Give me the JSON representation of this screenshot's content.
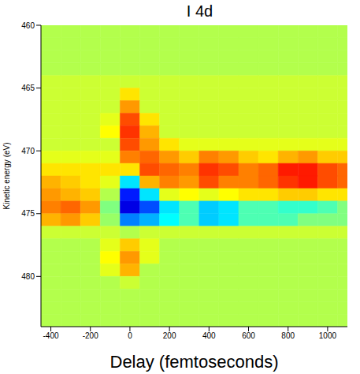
{
  "chart_data": {
    "type": "heatmap",
    "title": "I 4d",
    "x_label": "Delay (femtoseconds)",
    "y_label": "Kinetic energy (eV)",
    "xlim": [
      -450,
      1100
    ],
    "xticks": [
      -400,
      -200,
      0,
      200,
      400,
      600,
      800,
      1000
    ],
    "ylim": [
      460,
      484
    ],
    "yticks": [
      460,
      465,
      470,
      475,
      480
    ],
    "zlim": [
      -1,
      1
    ],
    "x_edges": [
      -450,
      -350,
      -250,
      -150,
      -50,
      50,
      150,
      250,
      350,
      450,
      550,
      650,
      750,
      850,
      950,
      1050,
      1150
    ],
    "y_edges": [
      460,
      461,
      462,
      463,
      464,
      465,
      466,
      467,
      468,
      469,
      470,
      471,
      472,
      473,
      474,
      475,
      476,
      477,
      478,
      479,
      480,
      481,
      482,
      483,
      484
    ],
    "z": [
      [
        0.1,
        0.1,
        0.1,
        0.1,
        0.1,
        0.1,
        0.1,
        0.1,
        0.1,
        0.1,
        0.1,
        0.1,
        0.1,
        0.1,
        0.1,
        0.1
      ],
      [
        0.1,
        0.1,
        0.1,
        0.1,
        0.1,
        0.1,
        0.1,
        0.1,
        0.1,
        0.1,
        0.1,
        0.1,
        0.1,
        0.1,
        0.1,
        0.1
      ],
      [
        0.1,
        0.1,
        0.1,
        0.1,
        0.1,
        0.1,
        0.1,
        0.1,
        0.1,
        0.1,
        0.1,
        0.1,
        0.1,
        0.1,
        0.1,
        0.1
      ],
      [
        0.1,
        0.1,
        0.1,
        0.1,
        0.1,
        0.1,
        0.1,
        0.1,
        0.1,
        0.1,
        0.1,
        0.1,
        0.1,
        0.1,
        0.1,
        0.1
      ],
      [
        0.15,
        0.15,
        0.15,
        0.15,
        0.15,
        0.15,
        0.15,
        0.15,
        0.15,
        0.15,
        0.15,
        0.15,
        0.15,
        0.15,
        0.15,
        0.15
      ],
      [
        0.15,
        0.15,
        0.15,
        0.15,
        0.3,
        0.15,
        0.15,
        0.15,
        0.15,
        0.15,
        0.15,
        0.15,
        0.15,
        0.15,
        0.15,
        0.15
      ],
      [
        0.15,
        0.15,
        0.15,
        0.15,
        0.45,
        0.15,
        0.15,
        0.15,
        0.15,
        0.15,
        0.15,
        0.15,
        0.15,
        0.15,
        0.15,
        0.15
      ],
      [
        0.15,
        0.15,
        0.15,
        0.2,
        0.6,
        0.3,
        0.15,
        0.15,
        0.15,
        0.15,
        0.15,
        0.15,
        0.15,
        0.15,
        0.15,
        0.15
      ],
      [
        0.15,
        0.15,
        0.15,
        0.25,
        0.65,
        0.4,
        0.15,
        0.15,
        0.15,
        0.15,
        0.15,
        0.15,
        0.15,
        0.15,
        0.15,
        0.15
      ],
      [
        0.15,
        0.15,
        0.15,
        0.15,
        0.6,
        0.45,
        0.3,
        0.2,
        0.2,
        0.2,
        0.2,
        0.2,
        0.2,
        0.2,
        0.2,
        0.2
      ],
      [
        0.2,
        0.2,
        0.2,
        0.2,
        0.5,
        0.55,
        0.45,
        0.35,
        0.5,
        0.45,
        0.35,
        0.3,
        0.4,
        0.45,
        0.35,
        0.35
      ],
      [
        0.3,
        0.3,
        0.3,
        0.3,
        0.3,
        0.6,
        0.55,
        0.5,
        0.65,
        0.6,
        0.5,
        0.55,
        0.7,
        0.7,
        0.6,
        0.55
      ],
      [
        0.4,
        0.35,
        0.3,
        0.2,
        -0.3,
        0.4,
        0.5,
        0.45,
        0.6,
        0.5,
        0.5,
        0.55,
        0.65,
        0.7,
        0.6,
        0.55
      ],
      [
        0.45,
        0.4,
        0.35,
        0.1,
        -0.7,
        -0.3,
        0.2,
        0.25,
        0.2,
        0.25,
        0.3,
        0.3,
        0.35,
        0.35,
        0.3,
        0.3
      ],
      [
        0.5,
        0.55,
        0.45,
        0.0,
        -0.8,
        -0.6,
        -0.3,
        -0.1,
        -0.35,
        -0.3,
        -0.1,
        -0.1,
        -0.15,
        -0.15,
        -0.1,
        0.0
      ],
      [
        0.4,
        0.45,
        0.35,
        0.05,
        -0.5,
        -0.4,
        -0.25,
        -0.1,
        -0.35,
        -0.3,
        -0.1,
        -0.1,
        -0.1,
        0.0,
        0.0,
        0.0
      ],
      [
        0.15,
        0.15,
        0.15,
        0.15,
        0.1,
        0.15,
        0.15,
        0.15,
        0.15,
        0.15,
        0.15,
        0.15,
        0.15,
        0.15,
        0.15,
        0.15
      ],
      [
        0.1,
        0.1,
        0.1,
        0.2,
        0.35,
        0.2,
        0.1,
        0.1,
        0.1,
        0.1,
        0.1,
        0.1,
        0.1,
        0.1,
        0.1,
        0.1
      ],
      [
        0.1,
        0.1,
        0.1,
        0.25,
        0.45,
        0.2,
        0.1,
        0.1,
        0.1,
        0.1,
        0.1,
        0.1,
        0.1,
        0.1,
        0.1,
        0.1
      ],
      [
        0.1,
        0.1,
        0.1,
        0.2,
        0.4,
        0.1,
        0.1,
        0.1,
        0.1,
        0.1,
        0.1,
        0.1,
        0.1,
        0.1,
        0.1,
        0.1
      ],
      [
        0.1,
        0.1,
        0.1,
        0.1,
        0.15,
        0.1,
        0.1,
        0.1,
        0.1,
        0.1,
        0.1,
        0.1,
        0.1,
        0.1,
        0.1,
        0.1
      ],
      [
        0.1,
        0.1,
        0.1,
        0.1,
        0.1,
        0.1,
        0.1,
        0.1,
        0.1,
        0.1,
        0.1,
        0.1,
        0.1,
        0.1,
        0.1,
        0.1
      ],
      [
        0.1,
        0.1,
        0.1,
        0.1,
        0.1,
        0.1,
        0.1,
        0.1,
        0.1,
        0.1,
        0.1,
        0.1,
        0.1,
        0.1,
        0.1,
        0.1
      ],
      [
        0.1,
        0.1,
        0.1,
        0.1,
        0.1,
        0.1,
        0.1,
        0.1,
        0.1,
        0.1,
        0.1,
        0.1,
        0.1,
        0.1,
        0.1,
        0.1
      ]
    ]
  }
}
